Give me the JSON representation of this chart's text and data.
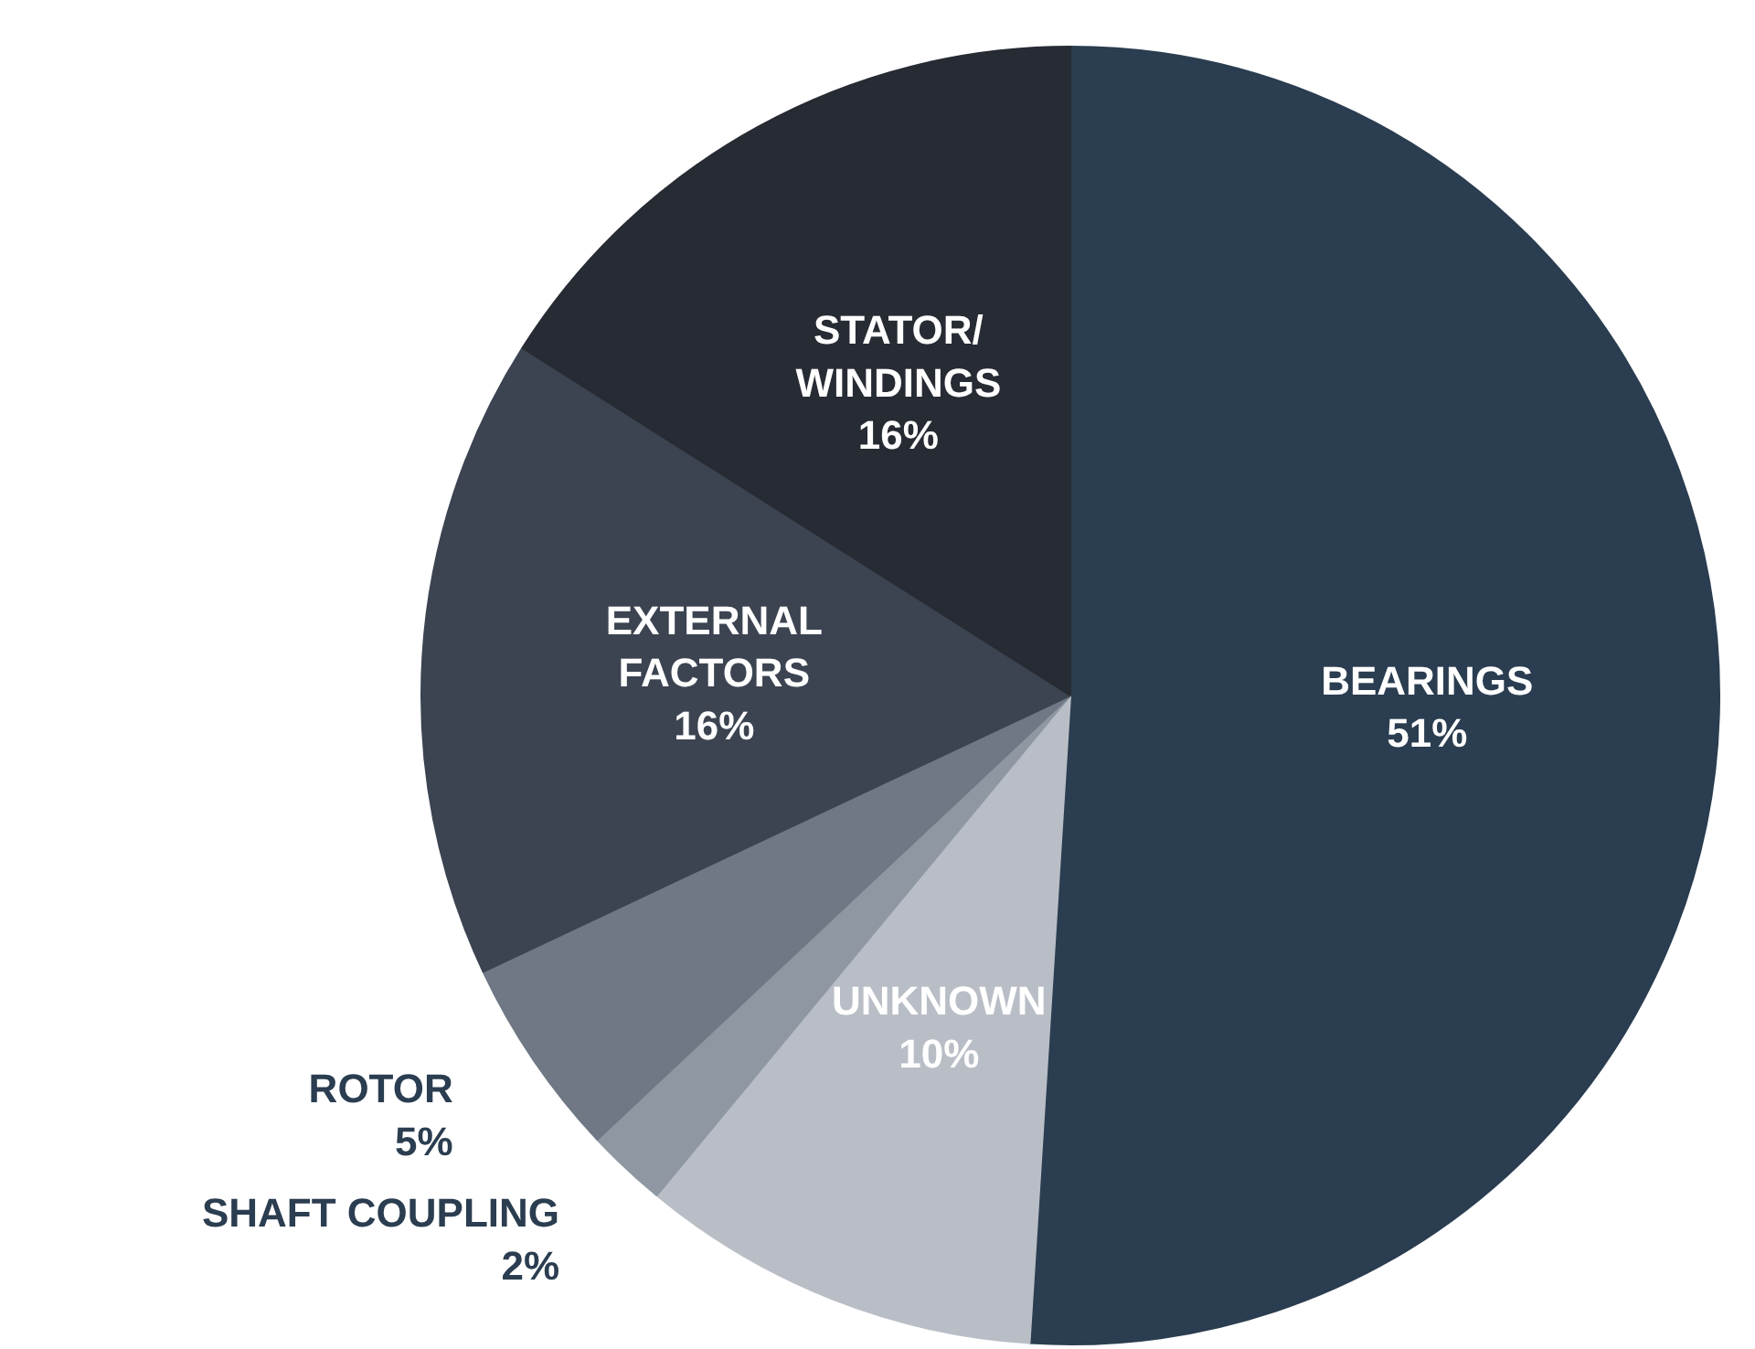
{
  "chart_data": {
    "type": "pie",
    "categories": [
      "BEARINGS",
      "UNKNOWN",
      "SHAFT COUPLING",
      "ROTOR",
      "EXTERNAL\nFACTORS",
      "STATOR/\nWINDINGS"
    ],
    "values": [
      51,
      10,
      2,
      5,
      16,
      16
    ],
    "value_labels": [
      "51%",
      "10%",
      "2%",
      "5%",
      "16%",
      "16%"
    ],
    "colors": [
      "#2b3d50",
      "#b9bec6",
      "#8f98a2",
      "#6f7884",
      "#3c4451",
      "#272b33"
    ]
  }
}
